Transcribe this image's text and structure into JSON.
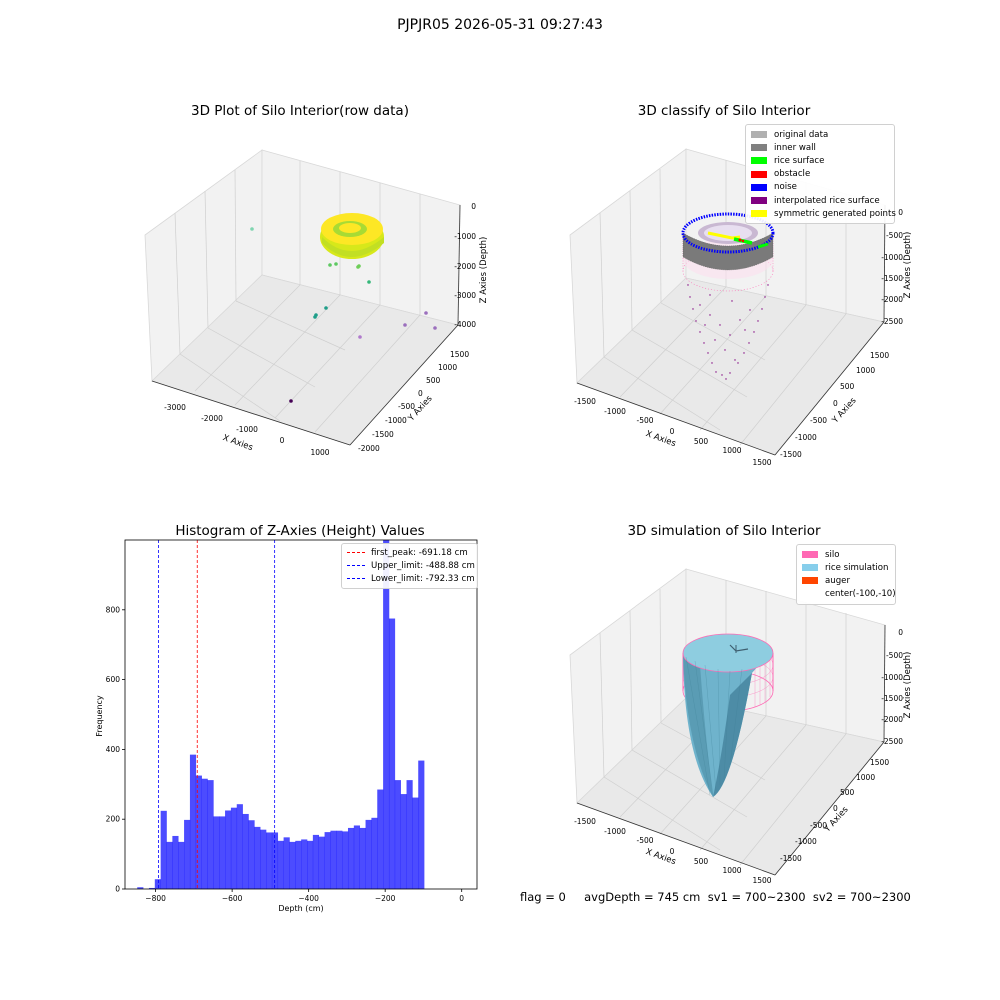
{
  "suptitle": "PJPJR05 2026-05-31 09:27:43",
  "footer": "flag = 0     avgDepth = 745 cm  sv1 = 700~2300  sv2 = 700~2300",
  "colors": {
    "original": "#b0b0b0",
    "inner_wall": "#808080",
    "rice_surface": "#00ff00",
    "obstacle": "#ff0000",
    "noise": "#0000ff",
    "interpolated": "#800080",
    "symmetric": "#ffff00",
    "silo": "#ff69b4",
    "rice_sim": "#87ceeb",
    "auger": "#ff4500",
    "hist_bar": "#0000ff"
  },
  "p1": {
    "title": "3D Plot of Silo Interior(row data)",
    "xlabel": "X Axies",
    "ylabel": "Y Axies",
    "zlabel": "Z Axies (Depth)",
    "xticks": [
      "-3000",
      "-2000",
      "-1000",
      "0",
      "1000"
    ],
    "yticks": [
      "-2000",
      "-1500",
      "-1000",
      "-500",
      "0",
      "500",
      "1000",
      "1500"
    ],
    "zticks": [
      "0",
      "-1000",
      "-2000",
      "-3000",
      "-4000"
    ]
  },
  "p2": {
    "title": "3D classify of Silo Interior",
    "xlabel": "X Axies",
    "ylabel": "Y Axies",
    "zlabel": "Z Axies (Depth)",
    "xticks": [
      "-1500",
      "-1000",
      "-500",
      "0",
      "500",
      "1000",
      "1500"
    ],
    "yticks": [
      "-1500",
      "-1000",
      "-500",
      "0",
      "500",
      "1000",
      "1500"
    ],
    "zticks": [
      "0",
      "-500",
      "-1000",
      "-1500",
      "-2000",
      "-2500"
    ],
    "legend": [
      {
        "label": "original data",
        "color": "#b0b0b0"
      },
      {
        "label": "inner wall",
        "color": "#808080"
      },
      {
        "label": "rice surface",
        "color": "#00ff00"
      },
      {
        "label": "obstacle",
        "color": "#ff0000"
      },
      {
        "label": "noise",
        "color": "#0000ff"
      },
      {
        "label": "interpolated rice surface",
        "color": "#800080"
      },
      {
        "label": "symmetric generated points",
        "color": "#ffff00"
      }
    ]
  },
  "p4": {
    "title": "3D simulation of Silo Interior",
    "xlabel": "X Axies",
    "ylabel": "Y Axies",
    "zlabel": "Z Axies (Depth)",
    "xticks": [
      "-1500",
      "-1000",
      "-500",
      "0",
      "500",
      "1000",
      "1500"
    ],
    "yticks": [
      "-1500",
      "-1000",
      "-500",
      "0",
      "500",
      "1000",
      "1500"
    ],
    "zticks": [
      "0",
      "-500",
      "-1000",
      "-1500",
      "-2000",
      "-2500"
    ],
    "legend": [
      {
        "label": "silo",
        "color": "#ff69b4"
      },
      {
        "label": "rice simulation",
        "color": "#87ceeb"
      },
      {
        "label": "auger",
        "color": "#ff4500"
      },
      {
        "label": "center(-100,-10)",
        "color": ""
      }
    ]
  },
  "chart_data": {
    "type": "bar",
    "title": "Histogram of Z-Axies (Height) Values",
    "xlabel": "Depth (cm)",
    "ylabel": "Frequency",
    "xlim": [
      -880,
      40
    ],
    "ylim": [
      0,
      1000
    ],
    "xticks": [
      -800,
      -600,
      -400,
      -200,
      0
    ],
    "yticks": [
      0,
      200,
      400,
      600,
      800
    ],
    "bin_width": 15.3,
    "bin_start": -848,
    "values": [
      5,
      0,
      3,
      28,
      224,
      135,
      152,
      135,
      198,
      385,
      325,
      316,
      312,
      208,
      208,
      225,
      233,
      243,
      215,
      197,
      178,
      170,
      162,
      162,
      138,
      148,
      135,
      138,
      142,
      138,
      155,
      150,
      163,
      167,
      167,
      165,
      175,
      182,
      175,
      198,
      204,
      285,
      1000,
      775,
      312,
      272,
      312,
      262,
      368
    ],
    "lines": [
      {
        "label": "first_peak: -691.18 cm",
        "x": -691.18,
        "color": "#ff0000"
      },
      {
        "label": "Upper_limit: -488.88 cm",
        "x": -488.88,
        "color": "#0000ff"
      },
      {
        "label": "Lower_limit: -792.33 cm",
        "x": -792.33,
        "color": "#0000ff"
      }
    ]
  }
}
